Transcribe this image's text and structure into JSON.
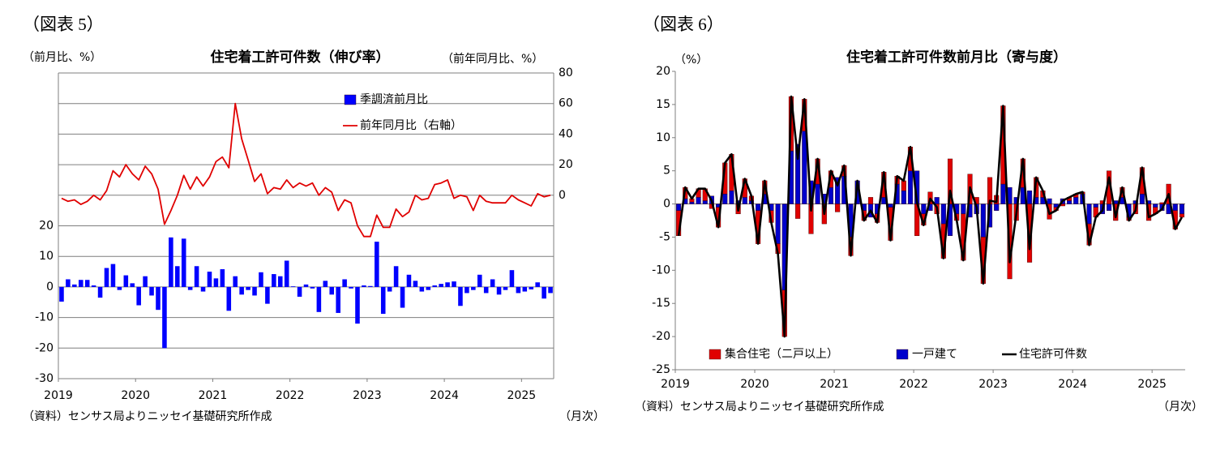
{
  "chart_data": [
    {
      "type": "bar_line",
      "figure_label": "（図表 5）",
      "title": "住宅着工許可件数（伸び率）",
      "y_label": "（前月比、%）",
      "y2_label": "（前年同月比、%）",
      "source": "（資料）センサス局よりニッセイ基礎研究所作成",
      "x_unit": "（月次）",
      "categories": [
        "2019",
        null,
        null,
        null,
        null,
        null,
        null,
        null,
        null,
        null,
        null,
        null,
        "2020",
        null,
        null,
        null,
        null,
        null,
        null,
        null,
        null,
        null,
        null,
        null,
        "2021",
        null,
        null,
        null,
        null,
        null,
        null,
        null,
        null,
        null,
        null,
        null,
        "2022",
        null,
        null,
        null,
        null,
        null,
        null,
        null,
        null,
        null,
        null,
        null,
        "2023",
        null,
        null,
        null,
        null,
        null,
        null,
        null,
        null,
        null,
        null,
        null,
        "2024",
        null,
        null,
        null,
        null,
        null,
        null,
        null,
        null,
        null,
        null,
        null,
        "2025",
        null,
        null,
        null,
        null
      ],
      "series": [
        {
          "name": "季調済前月比",
          "type": "bar",
          "color": "#0000ff",
          "values": [
            -4.8,
            2.5,
            0.8,
            2.3,
            2.3,
            0.5,
            -3.5,
            6.2,
            7.5,
            -1.0,
            3.8,
            1.2,
            -6.0,
            3.5,
            -2.8,
            -7.5,
            -20.0,
            16.2,
            6.8,
            15.8,
            -1.0,
            6.8,
            -1.5,
            5.0,
            2.8,
            5.8,
            -7.8,
            3.5,
            -2.5,
            -1.0,
            -2.8,
            4.8,
            -5.5,
            4.2,
            3.5,
            8.6,
            0.2,
            -3.2,
            0.8,
            -0.5,
            -8.2,
            2.0,
            -2.5,
            -8.5,
            2.5,
            -0.5,
            -12.0,
            0.5,
            0.3,
            14.8,
            -8.8,
            -1.5,
            6.8,
            -6.8,
            4.0,
            2.0,
            -1.5,
            -1.0,
            0.5,
            1.0,
            1.5,
            1.8,
            -6.2,
            -2.0,
            -1.0,
            4.0,
            -2.0,
            2.5,
            -2.5,
            -1.0,
            5.5,
            -2.0,
            -1.5,
            -0.8,
            1.5,
            -3.8,
            -2.0
          ]
        },
        {
          "name": "前年同月比（右軸）",
          "type": "line",
          "axis": "y2",
          "color": "#e00000",
          "values": [
            -2,
            -4,
            -3,
            -6,
            -4,
            0,
            -3,
            3,
            16,
            12,
            20,
            14,
            10,
            19,
            14,
            4,
            -19,
            -10,
            0,
            13,
            4,
            12,
            6,
            12,
            22,
            25,
            18,
            60,
            37,
            23,
            9,
            14,
            1,
            5,
            4,
            10,
            5,
            8,
            6,
            8,
            0,
            5,
            2,
            -10,
            -3,
            -5,
            -20,
            -27,
            -27,
            -13,
            -21,
            -21,
            -9,
            -14,
            -11,
            0,
            -3,
            -2,
            7,
            8,
            10,
            -2,
            0,
            -1,
            -10,
            0,
            -4,
            -5,
            -5,
            -5,
            0,
            -3,
            -5,
            -7,
            1,
            -1,
            0
          ]
        }
      ],
      "ylim": [
        -30,
        70
      ],
      "yticks": [
        -30,
        -20,
        -10,
        0,
        10,
        20
      ],
      "y2lim": [
        -120,
        80
      ],
      "y2ticks": [
        0,
        20,
        40,
        60,
        80
      ],
      "grid": true
    },
    {
      "type": "stacked_bar_line",
      "figure_label": "（図表 6）",
      "title": "住宅着工許可件数前月比（寄与度）",
      "y_label": "（%）",
      "source": "（資料）センサス局よりニッセイ基礎研究所作成",
      "x_unit": "（月次）",
      "categories": [
        "2019",
        null,
        null,
        null,
        null,
        null,
        null,
        null,
        null,
        null,
        null,
        null,
        "2020",
        null,
        null,
        null,
        null,
        null,
        null,
        null,
        null,
        null,
        null,
        null,
        "2021",
        null,
        null,
        null,
        null,
        null,
        null,
        null,
        null,
        null,
        null,
        null,
        "2022",
        null,
        null,
        null,
        null,
        null,
        null,
        null,
        null,
        null,
        null,
        null,
        "2023",
        null,
        null,
        null,
        null,
        null,
        null,
        null,
        null,
        null,
        null,
        null,
        "2024",
        null,
        null,
        null,
        null,
        null,
        null,
        null,
        null,
        null,
        null,
        null,
        "2025",
        null,
        null,
        null,
        null
      ],
      "series": [
        {
          "name": "集合住宅（二戸以上）",
          "type": "bar",
          "color": "#e00000",
          "values": [
            -3.8,
            1.7,
            0.5,
            1.3,
            1.8,
            -0.7,
            -3.0,
            4.7,
            5.5,
            -1.5,
            2.8,
            0.7,
            -5.0,
            2.0,
            -1.8,
            -1.5,
            -7.0,
            8.2,
            -2.2,
            4.8,
            -4.5,
            3.8,
            -3.0,
            2.5,
            -1.2,
            1.6,
            -2.8,
            0.0,
            -1.5,
            1.0,
            -1.3,
            3.8,
            -5.0,
            1.2,
            1.5,
            3.6,
            -4.8,
            -1.7,
            1.8,
            -1.5,
            -5.2,
            6.8,
            -1.0,
            -7.0,
            4.5,
            1.0,
            -7.0,
            4.0,
            1.3,
            11.8,
            -11.3,
            -2.5,
            4.3,
            -8.8,
            3.0,
            1.0,
            -2.3,
            -0.5,
            -0.3,
            0.5,
            0.5,
            0.3,
            -3.2,
            -1.5,
            0.5,
            5.0,
            -2.5,
            1.5,
            -0.5,
            -1.5,
            4.0,
            -2.5,
            -1.0,
            0.2,
            3.0,
            -2.8,
            -0.5
          ]
        },
        {
          "name": "一戸建て",
          "type": "bar",
          "color": "#0000cc",
          "values": [
            -1.0,
            0.8,
            0.3,
            1.0,
            0.5,
            1.2,
            -0.5,
            1.5,
            2.0,
            0.5,
            1.0,
            0.5,
            -1.0,
            1.5,
            -1.0,
            -6.0,
            -13.0,
            8.0,
            9.0,
            11.0,
            3.5,
            3.0,
            1.5,
            2.5,
            4.0,
            4.2,
            -5.0,
            3.5,
            -1.0,
            -2.0,
            -1.5,
            1.0,
            -0.5,
            3.0,
            2.0,
            5.0,
            5.0,
            -1.5,
            -1.0,
            1.0,
            -3.0,
            -4.8,
            -1.5,
            -1.5,
            -2.0,
            -1.5,
            -5.0,
            -3.5,
            -1.0,
            3.0,
            2.5,
            1.0,
            2.5,
            2.0,
            1.0,
            1.0,
            0.8,
            -0.5,
            0.8,
            0.5,
            1.0,
            1.5,
            -3.0,
            -0.5,
            -1.5,
            -1.0,
            0.5,
            1.0,
            -2.0,
            0.5,
            1.5,
            0.5,
            -0.5,
            -1.0,
            -1.5,
            -1.0,
            -1.5
          ]
        },
        {
          "name": "住宅許可件数",
          "type": "line",
          "color": "#000000",
          "values": [
            -4.8,
            2.5,
            0.8,
            2.3,
            2.3,
            0.5,
            -3.5,
            6.2,
            7.5,
            -1.0,
            3.8,
            1.2,
            -6.0,
            3.5,
            -2.8,
            -7.5,
            -20.0,
            16.2,
            6.8,
            15.8,
            -1.0,
            6.8,
            -1.5,
            5.0,
            2.8,
            5.8,
            -7.8,
            3.5,
            -2.5,
            -1.0,
            -2.8,
            4.8,
            -5.5,
            4.2,
            3.5,
            8.6,
            0.2,
            -3.2,
            0.8,
            -0.5,
            -8.2,
            2.0,
            -2.5,
            -8.5,
            2.5,
            -0.5,
            -12.0,
            0.5,
            0.3,
            14.8,
            -8.8,
            -1.5,
            6.8,
            -6.8,
            4.0,
            2.0,
            -1.5,
            -1.0,
            0.5,
            1.0,
            1.5,
            1.8,
            -6.2,
            -2.0,
            -1.0,
            4.0,
            -2.0,
            2.5,
            -2.5,
            -1.0,
            5.5,
            -2.0,
            -1.5,
            -0.8,
            1.5,
            -3.8,
            -2.0
          ]
        }
      ],
      "ylim": [
        -25,
        20
      ],
      "yticks": [
        -25,
        -20,
        -15,
        -10,
        -5,
        0,
        5,
        10,
        15,
        20
      ],
      "grid": false
    }
  ]
}
